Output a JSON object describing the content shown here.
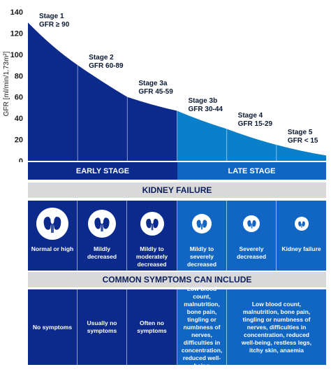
{
  "chart_data": {
    "type": "area",
    "ylabel": "GFR [ml/min/1.73m²]",
    "ylim": [
      0,
      140
    ],
    "yticks": [
      0,
      20,
      40,
      60,
      80,
      100,
      120,
      140
    ],
    "grid": false,
    "curve": [
      {
        "stage": 1,
        "start": 130,
        "end": 90
      },
      {
        "stage": 2,
        "start": 90,
        "end": 60
      },
      {
        "stage": 3,
        "start": 60,
        "end": 47
      },
      {
        "stage": 4,
        "start": 47,
        "end": 30
      },
      {
        "stage": 5,
        "start": 30,
        "end": 15
      },
      {
        "stage": 6,
        "start": 15,
        "end": 5
      }
    ],
    "stages": [
      {
        "name": "Stage 1",
        "range": "GFR ≥ 90"
      },
      {
        "name": "Stage 2",
        "range": "GFR 60-89"
      },
      {
        "name": "Stage 3a",
        "range": "GFR 45-59"
      },
      {
        "name": "Stage 3b",
        "range": "GFR 30-44"
      },
      {
        "name": "Stage 4",
        "range": "GFR 15-29"
      },
      {
        "name": "Stage 5",
        "range": "GFR < 15"
      }
    ]
  },
  "colors": {
    "dark_blue": "#0b2a8c",
    "mid_blue": "#1166c4",
    "cyan": "#0a7fca",
    "grey_band": "#d9d9d9"
  },
  "bands": {
    "early_stage": "EARLY STAGE",
    "late_stage": "LATE STAGE",
    "kidney_failure": "KIDNEY FAILURE",
    "common_symptoms": "COMMON SYMPTOMS CAN INCLUDE"
  },
  "function_levels": [
    "Normal or high",
    "Mildly decreased",
    "Mildly to moderately decreased",
    "Mildly to severely decreased",
    "Severely decreased",
    "Kidney failure"
  ],
  "symptoms": {
    "col1": "No symptoms",
    "col2": "Usually no symptoms",
    "col3": "Often no symptoms",
    "col4": "Low blood count, malnutrition, bone pain, tingling or numbness of nerves, difficulties in concentration, reduced well-being",
    "col5": "Low blood count, malnutrition, bone pain, tingling or numbness of nerves, difficulties in concentration, reduced well-being, restless legs, itchy skin, anaemia"
  }
}
